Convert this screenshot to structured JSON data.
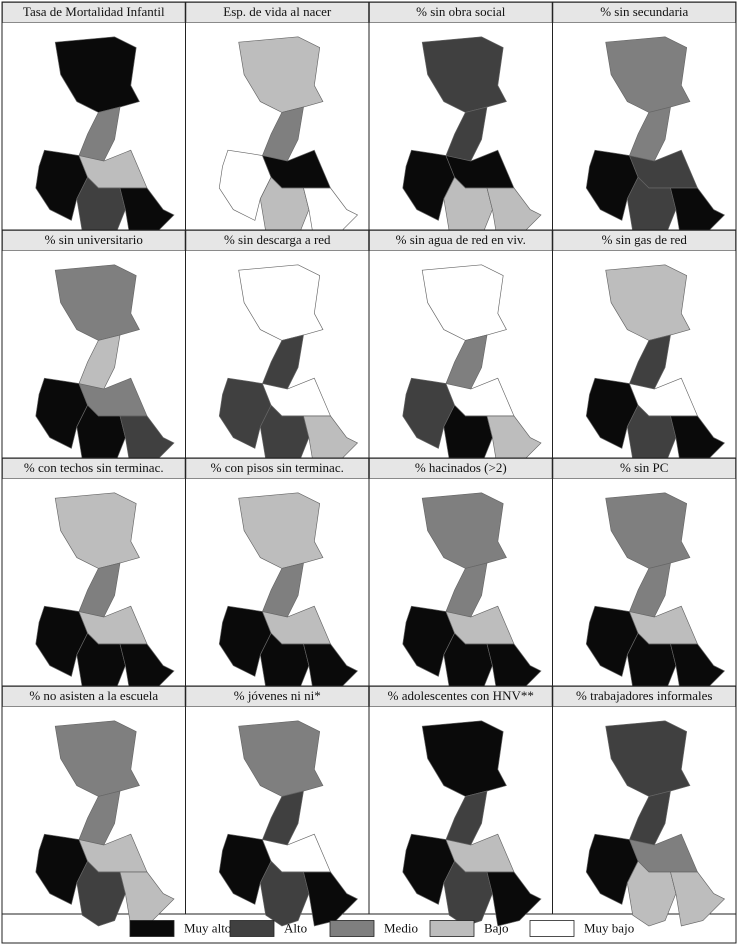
{
  "panels": [
    {
      "title": "Tasa de Mortalidad Infantil",
      "levels": [
        0,
        2,
        0,
        3,
        1,
        0
      ]
    },
    {
      "title": "Esp. de vida al nacer",
      "levels": [
        3,
        2,
        4,
        0,
        3,
        4
      ]
    },
    {
      "title": "% sin obra social",
      "levels": [
        1,
        1,
        0,
        0,
        3,
        3
      ]
    },
    {
      "title": "% sin secundaria",
      "levels": [
        2,
        2,
        0,
        1,
        1,
        0
      ]
    },
    {
      "title": "% sin universitario",
      "levels": [
        2,
        3,
        0,
        2,
        0,
        1
      ]
    },
    {
      "title": "% sin descarga a red",
      "levels": [
        4,
        1,
        1,
        4,
        1,
        3
      ]
    },
    {
      "title": "% sin agua de red en viv.",
      "levels": [
        4,
        2,
        1,
        4,
        0,
        3
      ]
    },
    {
      "title": "% sin gas de red",
      "levels": [
        3,
        1,
        0,
        4,
        1,
        0
      ]
    },
    {
      "title": "% con techos sin terminac.",
      "levels": [
        3,
        2,
        0,
        3,
        0,
        0
      ]
    },
    {
      "title": "% con pisos sin terminac.",
      "levels": [
        3,
        2,
        0,
        3,
        0,
        0
      ]
    },
    {
      "title": "% hacinados (>2)",
      "levels": [
        2,
        2,
        0,
        3,
        0,
        0
      ]
    },
    {
      "title": "% sin PC",
      "levels": [
        2,
        2,
        0,
        3,
        0,
        0
      ]
    },
    {
      "title": "% no asisten a la escuela",
      "levels": [
        2,
        2,
        0,
        3,
        1,
        3
      ]
    },
    {
      "title": "% jóvenes ni ni*",
      "levels": [
        2,
        1,
        0,
        4,
        1,
        0
      ]
    },
    {
      "title": "% adolescentes con HNV**",
      "levels": [
        0,
        1,
        0,
        3,
        1,
        0
      ]
    },
    {
      "title": "% trabajadores informales",
      "levels": [
        1,
        1,
        0,
        2,
        3,
        3
      ]
    }
  ],
  "legend": [
    {
      "label": "Muy alto",
      "color": "#0a0a0a"
    },
    {
      "label": "Alto",
      "color": "#404040"
    },
    {
      "label": "Medio",
      "color": "#7f7f7f"
    },
    {
      "label": "Bajo",
      "color": "#bdbdbd"
    },
    {
      "label": "Muy bajo",
      "color": "#ffffff"
    }
  ]
}
